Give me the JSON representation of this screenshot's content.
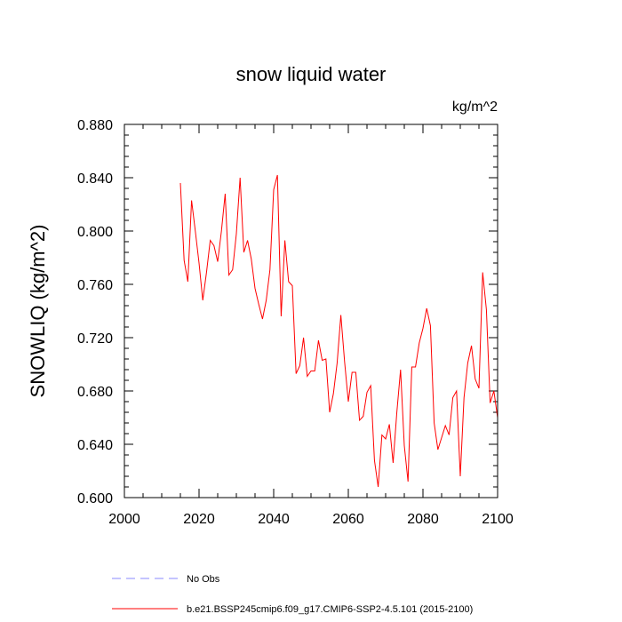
{
  "chart_data": {
    "type": "line",
    "title": "snow liquid water",
    "units": "kg/m^2",
    "ylabel": "SNOWLIQ  (kg/m^2)",
    "xlabel": "",
    "xlim": [
      2000,
      2100
    ],
    "ylim": [
      0.6,
      0.88
    ],
    "x_ticks": [
      2000,
      2020,
      2040,
      2060,
      2080,
      2100
    ],
    "x_tick_labels": [
      "2000",
      "2020",
      "2040",
      "2060",
      "2080",
      "2100"
    ],
    "y_ticks": [
      0.6,
      0.64,
      0.68,
      0.72,
      0.76,
      0.8,
      0.84,
      0.88
    ],
    "y_tick_labels": [
      "0.600",
      "0.640",
      "0.680",
      "0.720",
      "0.760",
      "0.800",
      "0.840",
      "0.880"
    ],
    "grid": false,
    "legend_position": "bottom-left",
    "series": [
      {
        "name": "b.e21.BSSP245cmip6.f09_g17.CMIP6-SSP2-4.5.101 (2015-2100)",
        "color": "#ff0000",
        "style": "solid",
        "x": [
          2015,
          2016,
          2017,
          2018,
          2019,
          2020,
          2021,
          2022,
          2023,
          2024,
          2025,
          2026,
          2027,
          2028,
          2029,
          2030,
          2031,
          2032,
          2033,
          2034,
          2035,
          2036,
          2037,
          2038,
          2039,
          2040,
          2041,
          2042,
          2043,
          2044,
          2045,
          2046,
          2047,
          2048,
          2049,
          2050,
          2051,
          2052,
          2053,
          2054,
          2055,
          2056,
          2057,
          2058,
          2059,
          2060,
          2061,
          2062,
          2063,
          2064,
          2065,
          2066,
          2067,
          2068,
          2069,
          2070,
          2071,
          2072,
          2073,
          2074,
          2075,
          2076,
          2077,
          2078,
          2079,
          2080,
          2081,
          2082,
          2083,
          2084,
          2085,
          2086,
          2087,
          2088,
          2089,
          2090,
          2091,
          2092,
          2093,
          2094,
          2095,
          2096,
          2097,
          2098,
          2099,
          2100
        ],
        "values": [
          0.836,
          0.778,
          0.762,
          0.823,
          0.8,
          0.776,
          0.748,
          0.769,
          0.793,
          0.789,
          0.777,
          0.8,
          0.828,
          0.767,
          0.771,
          0.798,
          0.84,
          0.784,
          0.793,
          0.779,
          0.757,
          0.745,
          0.734,
          0.748,
          0.771,
          0.831,
          0.842,
          0.736,
          0.793,
          0.762,
          0.759,
          0.693,
          0.699,
          0.72,
          0.691,
          0.695,
          0.695,
          0.718,
          0.703,
          0.704,
          0.664,
          0.678,
          0.701,
          0.737,
          0.702,
          0.672,
          0.694,
          0.694,
          0.658,
          0.661,
          0.679,
          0.684,
          0.628,
          0.608,
          0.647,
          0.644,
          0.655,
          0.626,
          0.664,
          0.696,
          0.639,
          0.612,
          0.698,
          0.698,
          0.716,
          0.727,
          0.742,
          0.729,
          0.656,
          0.636,
          0.645,
          0.654,
          0.647,
          0.675,
          0.68,
          0.616,
          0.675,
          0.701,
          0.714,
          0.689,
          0.682,
          0.769,
          0.741,
          0.671,
          0.68,
          0.66
        ]
      },
      {
        "name": "No Obs",
        "color": "#8888ff",
        "style": "dashed",
        "x": [],
        "values": []
      }
    ]
  }
}
